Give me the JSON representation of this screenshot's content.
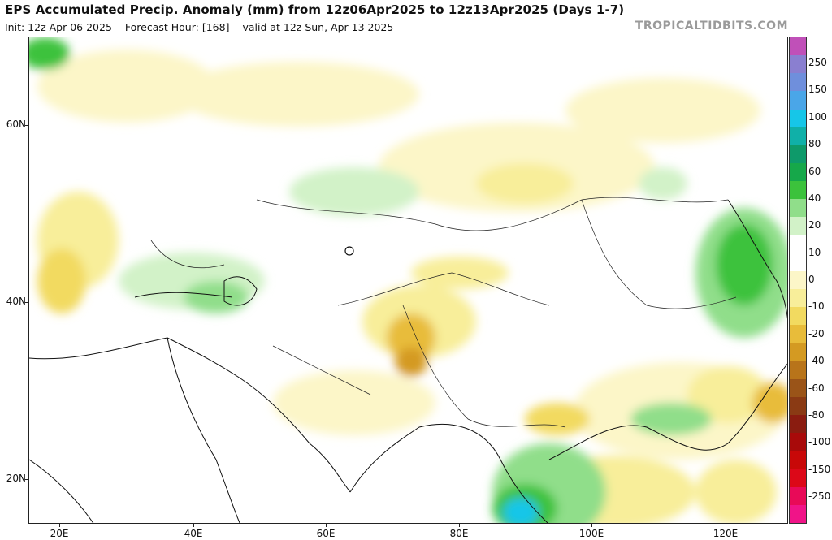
{
  "header": {
    "title": "EPS Accumulated Precip. Anomaly (mm) from 12z06Apr2025 to 12z13Apr2025 (Days 1-7)",
    "init": "Init: 12z Apr 06 2025",
    "forecast_hour": "Forecast Hour: [168]",
    "valid": "valid at 12z Sun, Apr 13 2025",
    "watermark": "TROPICALTIDBITS.COM"
  },
  "axes": {
    "lat_labels": [
      "60N",
      "40N",
      "20N"
    ],
    "lon_labels": [
      "20E",
      "40E",
      "60E",
      "80E",
      "100E",
      "120E"
    ]
  },
  "colorbar": {
    "labels": [
      "250",
      "150",
      "100",
      "80",
      "60",
      "40",
      "20",
      "10",
      "0",
      "-10",
      "-20",
      "-40",
      "-60",
      "-80",
      "-100",
      "-150",
      "-250"
    ],
    "colors": [
      "#c050b8",
      "#8a7fd0",
      "#6f8fdc",
      "#4aa6e8",
      "#16c6e8",
      "#10b0a8",
      "#0e9a6a",
      "#16a84a",
      "#3cc23c",
      "#90de8a",
      "#d2f2c8",
      "#ffffff",
      "#ffffff",
      "#fcf6c8",
      "#f8ee9a",
      "#f2da60",
      "#e8bc3a",
      "#d49a22",
      "#b8741a",
      "#9a5418",
      "#8a3a14",
      "#8a1c10",
      "#a80a0a",
      "#c80808",
      "#dc0818",
      "#e80a58",
      "#f01488"
    ]
  }
}
